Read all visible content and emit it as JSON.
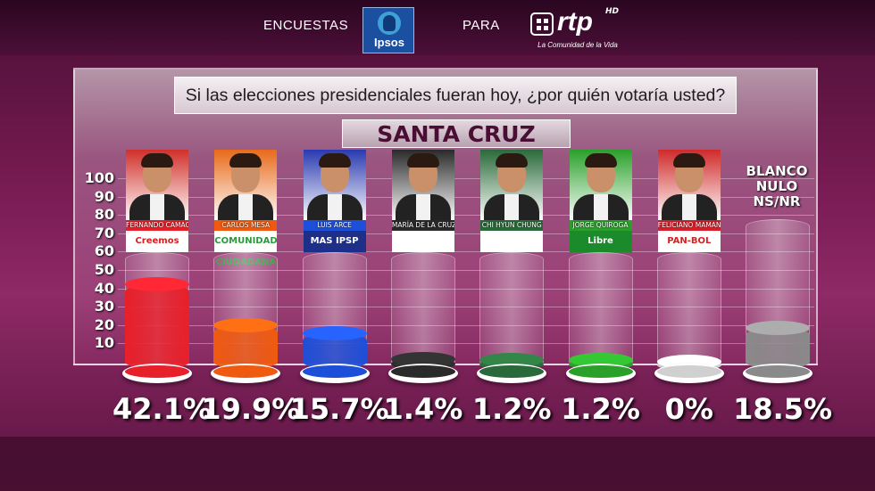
{
  "header": {
    "left_text": "ENCUESTAS",
    "middle_text": "PARA",
    "pollster_logo": "Ipsos",
    "broadcaster_logo": "rtp",
    "broadcaster_hd": "HD",
    "broadcaster_slogan": "La Comunidad de la Vida"
  },
  "colors": {
    "background": "#7a1c55",
    "camacho": "#e8202a",
    "mesa": "#f05a10",
    "arce": "#1e4fd8",
    "bayá": "#2a2a2a",
    "chung": "#2a6a3a",
    "quiroga": "#2aa02a",
    "mamani": "#d0d0d0",
    "blanco": "#8a8a8a"
  },
  "chart_data": {
    "type": "bar",
    "title": "Si las elecciones presidenciales fueran hoy, ¿por quién votaría usted?",
    "subtitle": "SANTA CRUZ",
    "categories": [
      "FERNANDO CAMACHO",
      "CARLOS MESA",
      "LUIS ARCE",
      "MARÍA DE LA CRUZ BAYÁ",
      "CHI HYUN CHUNG",
      "JORGE QUIROGA",
      "FELICIANO MAMANI",
      "BLANCO NULO NS/NR"
    ],
    "parties": [
      "Creemos",
      "COMUNIDAD CIUDADANA",
      "MAS IPSP",
      "",
      "",
      "Libre",
      "PAN-BOL",
      ""
    ],
    "values": [
      42.1,
      19.9,
      15.7,
      1.4,
      1.2,
      1.2,
      0,
      18.5
    ],
    "value_labels": [
      "42.1%",
      "19.9%",
      "15.7%",
      "1.4%",
      "1.2%",
      "1.2%",
      "0%",
      "18.5%"
    ],
    "ylim": [
      0,
      100
    ],
    "yticks": [
      10,
      20,
      30,
      40,
      50,
      60,
      70,
      80,
      90,
      100
    ],
    "grid": true
  },
  "blank_label_lines": [
    "BLANCO",
    "NULO",
    "NS/NR"
  ]
}
